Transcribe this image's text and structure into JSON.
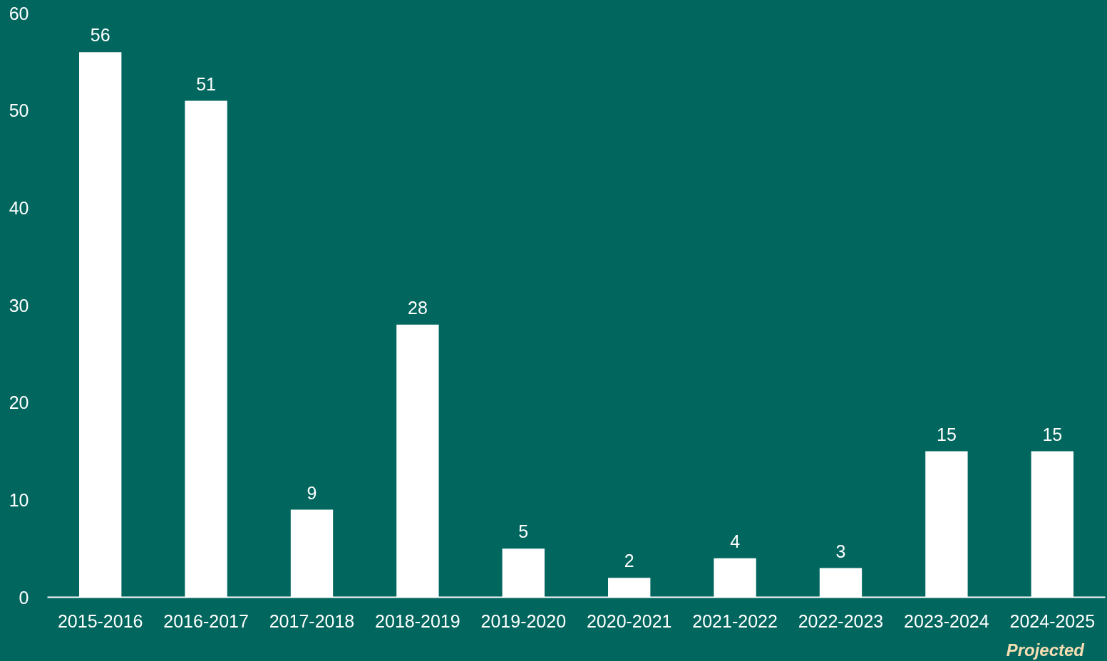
{
  "chart_data": {
    "type": "bar",
    "categories": [
      "2015-2016",
      "2016-2017",
      "2017-2018",
      "2018-2019",
      "2019-2020",
      "2020-2021",
      "2021-2022",
      "2022-2023",
      "2023-2024",
      "2024-2025"
    ],
    "values": [
      56,
      51,
      9,
      28,
      5,
      2,
      4,
      3,
      15,
      15
    ],
    "color": "#ffffff",
    "ylim": [
      0,
      60
    ],
    "yticks": [
      0,
      10,
      20,
      30,
      40,
      50,
      60
    ],
    "data_labels": true,
    "grid": false,
    "legend": false,
    "annotations": [
      "Projected"
    ]
  }
}
